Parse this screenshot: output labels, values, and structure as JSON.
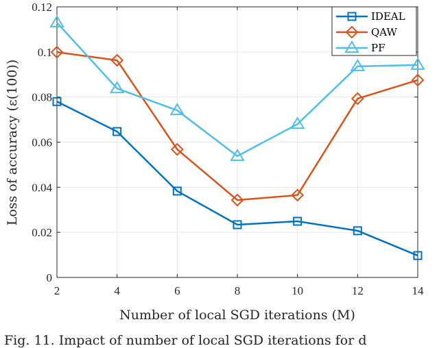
{
  "chart_data": {
    "type": "line",
    "title": "",
    "xlabel": "Number of local SGD iterations (M)",
    "ylabel": "Loss of accuracy (ε(100))",
    "x": [
      2,
      4,
      6,
      8,
      10,
      12,
      14
    ],
    "xlim": [
      2,
      14
    ],
    "ylim": [
      0,
      0.12
    ],
    "xticks": [
      "2",
      "4",
      "6",
      "8",
      "10",
      "12",
      "14"
    ],
    "yticks": [
      "0",
      "0.02",
      "0.04",
      "0.06",
      "0.08",
      "0.1",
      "0.12"
    ],
    "grid": true,
    "legend_position": "top-right",
    "series": [
      {
        "name": "IDEAL",
        "color": "#0072BD",
        "marker": "square",
        "values": [
          0.078,
          0.0647,
          0.0383,
          0.0234,
          0.0249,
          0.0207,
          0.0097
        ]
      },
      {
        "name": "QAW",
        "color": "#D95319",
        "marker": "diamond",
        "values": [
          0.0999,
          0.0963,
          0.0568,
          0.0343,
          0.0365,
          0.0793,
          0.0875
        ]
      },
      {
        "name": "PF",
        "color": "#4DBEEE",
        "marker": "triangle",
        "values": [
          0.113,
          0.0838,
          0.0741,
          0.0538,
          0.068,
          0.0936,
          0.0942
        ]
      }
    ]
  },
  "caption": "Fig. 11.  Impact of number of local SGD iterations for d"
}
